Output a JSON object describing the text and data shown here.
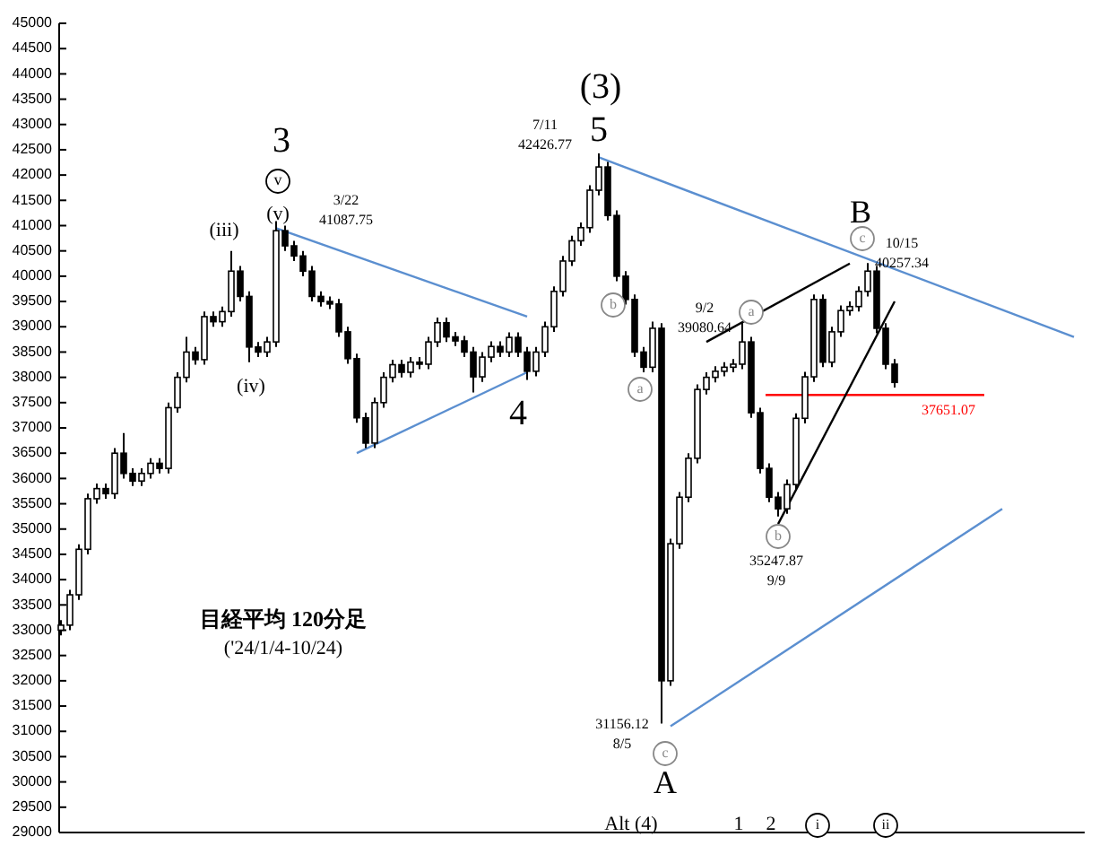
{
  "chart_data": {
    "type": "candlestick",
    "title": "目経平均 120分足",
    "subtitle": "('24/1/4-10/24)",
    "categories": [
      null,
      null,
      null,
      null,
      null,
      null,
      null,
      null,
      null,
      null,
      null,
      null,
      null,
      null,
      null,
      null,
      null,
      null,
      null,
      null,
      null,
      null,
      null,
      null,
      null,
      null,
      null,
      null,
      null,
      null,
      null,
      null,
      null,
      null,
      null,
      null,
      null,
      null,
      null,
      null,
      null,
      null,
      null,
      null,
      null,
      null,
      null,
      null,
      null,
      null,
      null,
      null,
      null,
      null,
      null,
      null,
      null,
      null,
      null,
      null,
      null,
      null,
      null,
      null,
      null,
      null,
      null,
      null,
      null,
      null,
      null,
      null,
      null,
      null,
      null,
      null,
      null,
      null,
      null,
      null,
      null,
      null,
      null,
      null,
      null,
      null,
      null,
      null,
      null,
      null,
      null,
      null,
      null,
      null,
      null,
      null,
      null,
      null,
      null,
      null,
      null,
      null,
      null,
      null,
      null,
      null,
      null,
      null,
      null,
      null,
      null,
      null,
      null,
      null
    ],
    "ohlc": [
      [
        33000,
        33200,
        32900,
        33100
      ],
      [
        33100,
        33800,
        33000,
        33700
      ],
      [
        33700,
        34700,
        33600,
        34600
      ],
      [
        34600,
        35700,
        34500,
        35600
      ],
      [
        35600,
        35900,
        35500,
        35800
      ],
      [
        35800,
        35900,
        35600,
        35700
      ],
      [
        35700,
        36600,
        35600,
        36500
      ],
      [
        36500,
        36900,
        36000,
        36100
      ],
      [
        36100,
        36200,
        35850,
        35950
      ],
      [
        35950,
        36200,
        35850,
        36100
      ],
      [
        36100,
        36400,
        36000,
        36300
      ],
      [
        36300,
        36400,
        36100,
        36200
      ],
      [
        36200,
        37500,
        36100,
        37400
      ],
      [
        37400,
        38100,
        37300,
        38000
      ],
      [
        38000,
        38800,
        37900,
        38500
      ],
      [
        38500,
        38600,
        38250,
        38350
      ],
      [
        38350,
        39300,
        38250,
        39200
      ],
      [
        39200,
        39300,
        39000,
        39100
      ],
      [
        39100,
        39400,
        39000,
        39300
      ],
      [
        39300,
        40500,
        39200,
        40100
      ],
      [
        40100,
        40200,
        39500,
        39600
      ],
      [
        39600,
        39700,
        38300,
        38600
      ],
      [
        38600,
        38700,
        38400,
        38500
      ],
      [
        38500,
        38800,
        38400,
        38700
      ],
      [
        38700,
        41087.75,
        38600,
        40900
      ],
      [
        40900,
        41000,
        40500,
        40600
      ],
      [
        40600,
        40700,
        40300,
        40400
      ],
      [
        40400,
        40500,
        40000,
        40100
      ],
      [
        40100,
        40200,
        39500,
        39600
      ],
      [
        39600,
        39700,
        39400,
        39500
      ],
      [
        39500,
        39600,
        39350,
        39450
      ],
      [
        39450,
        39550,
        38800,
        38900
      ],
      [
        38900,
        39000,
        38270,
        38370
      ],
      [
        38370,
        38470,
        37100,
        37200
      ],
      [
        37200,
        37300,
        36600,
        36700
      ],
      [
        36700,
        37600,
        36600,
        37500
      ],
      [
        37500,
        38100,
        37400,
        38000
      ],
      [
        38000,
        38350,
        37900,
        38250
      ],
      [
        38250,
        38350,
        38000,
        38100
      ],
      [
        38100,
        38400,
        38000,
        38300
      ],
      [
        38300,
        38400,
        38160,
        38260
      ],
      [
        38260,
        38800,
        38160,
        38700
      ],
      [
        38700,
        39180,
        38600,
        39080
      ],
      [
        39080,
        39180,
        38700,
        38800
      ],
      [
        38800,
        38900,
        38620,
        38720
      ],
      [
        38720,
        38820,
        38400,
        38500
      ],
      [
        38500,
        38600,
        37700,
        38010
      ],
      [
        38010,
        38500,
        37910,
        38400
      ],
      [
        38400,
        38710,
        38300,
        38610
      ],
      [
        38610,
        38710,
        38400,
        38500
      ],
      [
        38500,
        38890,
        38400,
        38790
      ],
      [
        38790,
        38890,
        38400,
        38500
      ],
      [
        38500,
        38600,
        37950,
        38120
      ],
      [
        38120,
        38600,
        38020,
        38500
      ],
      [
        38500,
        39100,
        38400,
        39000
      ],
      [
        39000,
        39800,
        38900,
        39700
      ],
      [
        39700,
        40400,
        39600,
        40300
      ],
      [
        40300,
        40800,
        40200,
        40700
      ],
      [
        40700,
        41060,
        40600,
        40960
      ],
      [
        40960,
        41800,
        40860,
        41700
      ],
      [
        41700,
        42426.77,
        41600,
        42160
      ],
      [
        42160,
        42260,
        41100,
        41200
      ],
      [
        41200,
        41300,
        39900,
        40000
      ],
      [
        40000,
        40100,
        39440,
        39540
      ],
      [
        39540,
        39640,
        38400,
        38500
      ],
      [
        38500,
        38600,
        38100,
        38200
      ],
      [
        38200,
        39100,
        38100,
        38970
      ],
      [
        38970,
        39070,
        31156.12,
        32000
      ],
      [
        32000,
        34810,
        31900,
        34710
      ],
      [
        34710,
        35730,
        34610,
        35630
      ],
      [
        35630,
        36500,
        35530,
        36400
      ],
      [
        36400,
        37860,
        36300,
        37760
      ],
      [
        37760,
        38100,
        37660,
        38000
      ],
      [
        38000,
        38220,
        37900,
        38120
      ],
      [
        38120,
        38300,
        38020,
        38200
      ],
      [
        38200,
        38360,
        38100,
        38260
      ],
      [
        38260,
        39080.64,
        38160,
        38700
      ],
      [
        38700,
        38800,
        37200,
        37300
      ],
      [
        37300,
        37400,
        36100,
        36200
      ],
      [
        36200,
        36300,
        35530,
        35630
      ],
      [
        35630,
        35730,
        35247.87,
        35400
      ],
      [
        35400,
        35980,
        35300,
        35880
      ],
      [
        35880,
        37290,
        35780,
        37190
      ],
      [
        37190,
        38110,
        37090,
        38010
      ],
      [
        38010,
        39640,
        37910,
        39540
      ],
      [
        39540,
        39640,
        38200,
        38300
      ],
      [
        38300,
        39000,
        38200,
        38900
      ],
      [
        38900,
        39420,
        38800,
        39320
      ],
      [
        39320,
        39500,
        39220,
        39400
      ],
      [
        39400,
        39800,
        39300,
        39700
      ],
      [
        39700,
        40257.34,
        39600,
        40100
      ],
      [
        40100,
        40200,
        38870,
        38970
      ],
      [
        38970,
        39070,
        38160,
        38260
      ],
      [
        38260,
        38360,
        37800,
        37900
      ],
      null,
      null,
      null,
      null,
      null,
      null,
      null,
      null,
      null,
      null,
      null,
      null,
      null,
      null,
      null,
      null,
      null,
      null,
      null,
      null
    ],
    "series": [
      {
        "type": "line",
        "color": "#5b8fd0",
        "values": [
          null,
          null,
          null,
          null,
          null,
          null,
          null,
          null,
          null,
          null,
          null,
          null,
          null,
          null,
          null,
          null,
          null,
          null,
          null,
          null,
          null,
          null,
          null,
          null,
          40950,
          null,
          null,
          null,
          null,
          null,
          null,
          null,
          null,
          null,
          null,
          null,
          null,
          null,
          null,
          null,
          null,
          null,
          null,
          null,
          null,
          null,
          null,
          null,
          null,
          null,
          null,
          null,
          39200,
          null,
          null,
          null,
          null,
          null,
          null,
          null,
          null,
          null,
          null,
          null,
          null,
          null,
          null,
          null,
          null,
          null,
          null,
          null,
          null,
          null,
          null,
          null,
          null,
          null,
          null,
          null,
          null,
          null,
          null,
          null,
          null,
          null,
          null,
          null,
          null,
          null,
          null,
          null,
          null,
          null,
          null,
          null,
          null,
          null,
          null,
          null,
          null,
          null,
          null,
          null,
          null,
          null,
          null,
          null,
          null,
          null,
          null,
          null,
          null,
          null
        ]
      },
      {
        "type": "line",
        "color": "#5b8fd0",
        "values": [
          null,
          null,
          null,
          null,
          null,
          null,
          null,
          null,
          null,
          null,
          null,
          null,
          null,
          null,
          null,
          null,
          null,
          null,
          null,
          null,
          null,
          null,
          null,
          null,
          null,
          null,
          null,
          null,
          null,
          null,
          null,
          null,
          null,
          36500,
          null,
          null,
          null,
          null,
          null,
          null,
          null,
          null,
          null,
          null,
          null,
          null,
          null,
          null,
          null,
          null,
          null,
          null,
          38100,
          null,
          null,
          null,
          null,
          null,
          null,
          null,
          null,
          null,
          null,
          null,
          null,
          null,
          null,
          null,
          null,
          null,
          null,
          null,
          null,
          null,
          null,
          null,
          null,
          null,
          null,
          null,
          null,
          null,
          null,
          null,
          null,
          null,
          null,
          null,
          null,
          null,
          null,
          null,
          null,
          null,
          null,
          null,
          null,
          null,
          null,
          null,
          null,
          null,
          null,
          null,
          null,
          null,
          null,
          null,
          null,
          null,
          null,
          null,
          null,
          null
        ]
      },
      {
        "type": "line",
        "color": "#5b8fd0",
        "values": [
          null,
          null,
          null,
          null,
          null,
          null,
          null,
          null,
          null,
          null,
          null,
          null,
          null,
          null,
          null,
          null,
          null,
          null,
          null,
          null,
          null,
          null,
          null,
          null,
          null,
          null,
          null,
          null,
          null,
          null,
          null,
          null,
          null,
          null,
          null,
          null,
          null,
          null,
          null,
          null,
          null,
          null,
          null,
          null,
          null,
          null,
          null,
          null,
          null,
          null,
          null,
          null,
          null,
          null,
          null,
          null,
          null,
          null,
          null,
          null,
          42350,
          null,
          null,
          null,
          null,
          null,
          null,
          null,
          null,
          null,
          null,
          null,
          null,
          null,
          null,
          null,
          null,
          null,
          null,
          null,
          null,
          null,
          null,
          null,
          null,
          null,
          null,
          null,
          null,
          null,
          null,
          null,
          null,
          null,
          null,
          null,
          null,
          null,
          null,
          null,
          null,
          null,
          null,
          null,
          null,
          null,
          null,
          null,
          null,
          null,
          null,
          null,
          null,
          38800
        ]
      },
      {
        "type": "line",
        "color": "#5b8fd0",
        "values": [
          null,
          null,
          null,
          null,
          null,
          null,
          null,
          null,
          null,
          null,
          null,
          null,
          null,
          null,
          null,
          null,
          null,
          null,
          null,
          null,
          null,
          null,
          null,
          null,
          null,
          null,
          null,
          null,
          null,
          null,
          null,
          null,
          null,
          null,
          null,
          null,
          null,
          null,
          null,
          null,
          null,
          null,
          null,
          null,
          null,
          null,
          null,
          null,
          null,
          null,
          null,
          null,
          null,
          null,
          null,
          null,
          null,
          null,
          null,
          null,
          null,
          null,
          null,
          null,
          null,
          null,
          null,
          null,
          31100,
          null,
          null,
          null,
          null,
          null,
          null,
          null,
          null,
          null,
          null,
          null,
          null,
          null,
          null,
          null,
          null,
          null,
          null,
          null,
          null,
          null,
          null,
          null,
          null,
          null,
          null,
          null,
          null,
          null,
          null,
          null,
          null,
          null,
          null,
          null,
          null,
          35400,
          null,
          null,
          null,
          null,
          null,
          null,
          null,
          null
        ]
      },
      {
        "type": "line",
        "color": "#000000",
        "values": [
          null,
          null,
          null,
          null,
          null,
          null,
          null,
          null,
          null,
          null,
          null,
          null,
          null,
          null,
          null,
          null,
          null,
          null,
          null,
          null,
          null,
          null,
          null,
          null,
          null,
          null,
          null,
          null,
          null,
          null,
          null,
          null,
          null,
          null,
          null,
          null,
          null,
          null,
          null,
          null,
          null,
          null,
          null,
          null,
          null,
          null,
          null,
          null,
          null,
          null,
          null,
          null,
          null,
          null,
          null,
          null,
          null,
          null,
          null,
          null,
          null,
          null,
          null,
          null,
          null,
          null,
          null,
          null,
          null,
          null,
          null,
          null,
          38700,
          null,
          null,
          null,
          null,
          null,
          null,
          null,
          null,
          null,
          null,
          null,
          null,
          null,
          null,
          null,
          40250,
          null,
          null,
          null,
          null,
          null,
          null,
          null,
          null,
          null,
          null,
          null,
          null,
          null,
          null,
          null,
          null,
          null,
          null,
          null,
          null,
          null,
          null,
          null,
          null,
          null
        ]
      },
      {
        "type": "line",
        "color": "#000000",
        "values": [
          null,
          null,
          null,
          null,
          null,
          null,
          null,
          null,
          null,
          null,
          null,
          null,
          null,
          null,
          null,
          null,
          null,
          null,
          null,
          null,
          null,
          null,
          null,
          null,
          null,
          null,
          null,
          null,
          null,
          null,
          null,
          null,
          null,
          null,
          null,
          null,
          null,
          null,
          null,
          null,
          null,
          null,
          null,
          null,
          null,
          null,
          null,
          null,
          null,
          null,
          null,
          null,
          null,
          null,
          null,
          null,
          null,
          null,
          null,
          null,
          null,
          null,
          null,
          null,
          null,
          null,
          null,
          null,
          null,
          null,
          null,
          null,
          null,
          null,
          null,
          null,
          null,
          null,
          null,
          null,
          35100,
          null,
          null,
          null,
          null,
          null,
          null,
          null,
          null,
          null,
          null,
          null,
          null,
          39500,
          null,
          null,
          null,
          null,
          null,
          null,
          null,
          null,
          null,
          null,
          null,
          null,
          null,
          null,
          null,
          null,
          null,
          null,
          null,
          null
        ]
      }
    ],
    "ref_lines": [
      {
        "axis": "y",
        "value": 37651.07,
        "label": "37651.07",
        "color": "#ff0000"
      }
    ],
    "ylim": [
      29000,
      45000
    ],
    "yticks": [
      29000,
      29500,
      30000,
      30500,
      31000,
      31500,
      32000,
      32500,
      33000,
      33500,
      34000,
      34500,
      35000,
      35500,
      36000,
      36500,
      37000,
      37500,
      38000,
      38500,
      39000,
      39500,
      40000,
      40500,
      41000,
      41500,
      42000,
      42500,
      43000,
      43500,
      44000,
      44500,
      45000
    ],
    "tick_labels": "y",
    "annotations": [
      "(3)",
      "5",
      "3",
      "v",
      "(v)",
      "(iii)",
      "(iv)",
      "3/22",
      "41087.75",
      "7/11",
      "42426.77",
      "4",
      "b",
      "a",
      "9/2",
      "39080.64",
      "a",
      "B",
      "c",
      "10/15",
      "40257.34",
      "b",
      "35247.87",
      "9/9",
      "31156.12",
      "8/5",
      "c",
      "A",
      "Alt (4)",
      "1",
      "2",
      "i",
      "ii"
    ]
  }
}
